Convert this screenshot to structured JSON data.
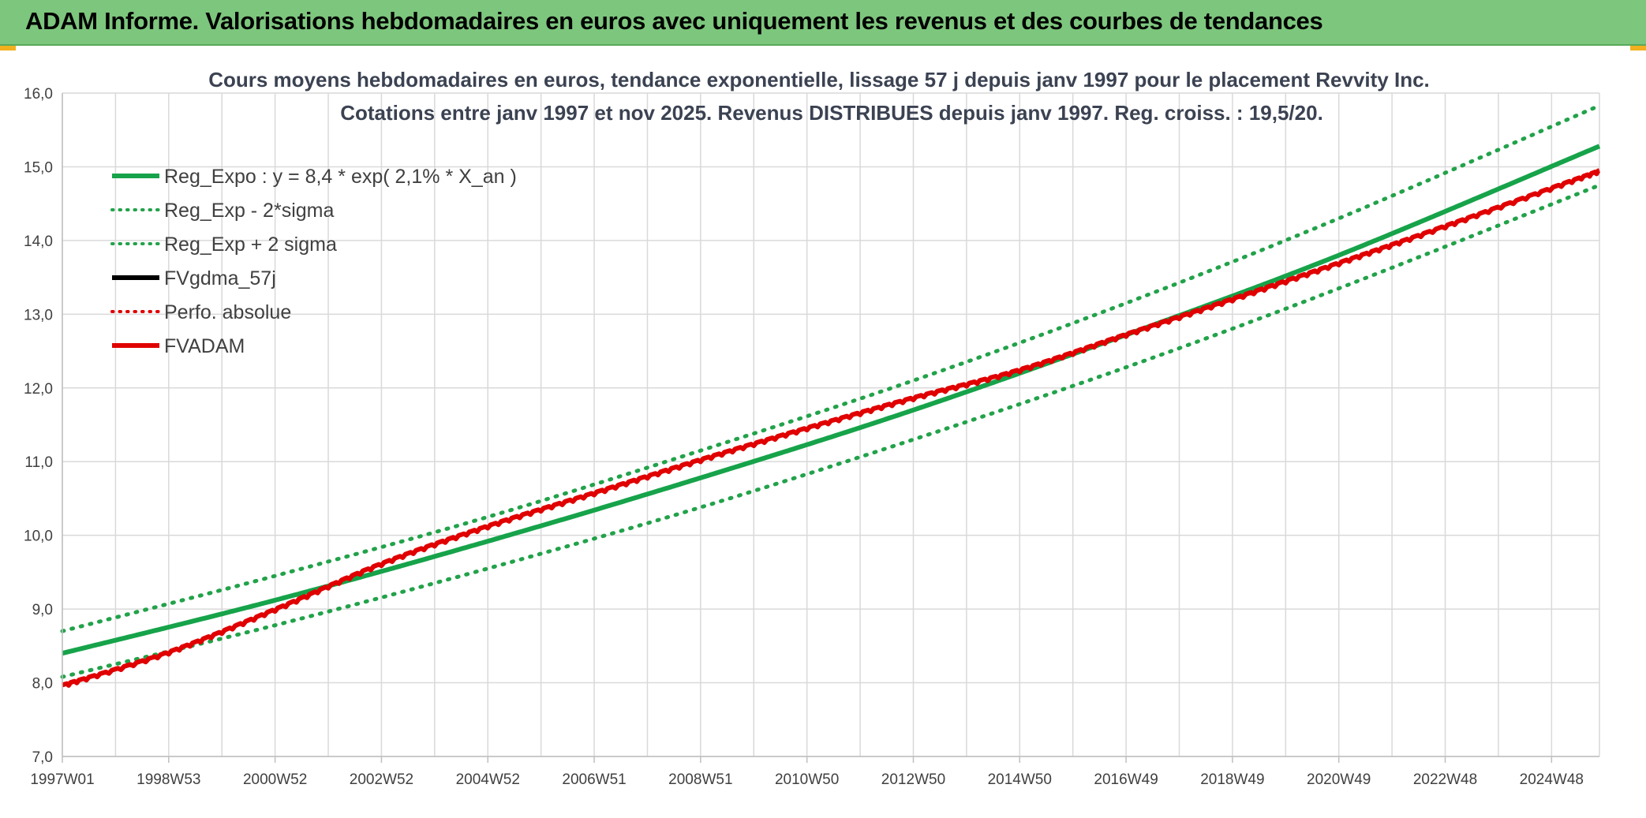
{
  "banner": {
    "title": "ADAM Informe. Valorisations hebdomadaires en euros avec uniquement les revenus et des courbes de tendances"
  },
  "colors": {
    "banner_bg": "#7dc67d",
    "regression": "#16a34a",
    "band": "#22a24a",
    "smoothed": "#000000",
    "perf": "#e00000",
    "fvadam": "#e00000",
    "grid": "#d9d9d9",
    "accent_corner": "#f2b01e"
  },
  "chart_data": {
    "type": "line",
    "title_line1": "Cours moyens hebdomadaires en euros, tendance exponentielle, lissage 57 j depuis janv 1997 pour le placement Revvity Inc.",
    "title_line2": "Cotations entre janv 1997 et nov 2025. Revenus DISTRIBUES depuis janv 1997. Reg. croiss. : 19,5/20.",
    "ylim": [
      7.0,
      16.0
    ],
    "y_ticks": [
      "7,0",
      "8,0",
      "9,0",
      "10,0",
      "11,0",
      "12,0",
      "13,0",
      "14,0",
      "15,0",
      "16,0"
    ],
    "x_range_years": [
      1997.0,
      2025.9
    ],
    "x_ticks": [
      {
        "label": "1997W01",
        "year": 1997.0
      },
      {
        "label": "1998W53",
        "year": 1999.0
      },
      {
        "label": "2000W52",
        "year": 2001.0
      },
      {
        "label": "2002W52",
        "year": 2003.0
      },
      {
        "label": "2004W52",
        "year": 2005.0
      },
      {
        "label": "2006W51",
        "year": 2007.0
      },
      {
        "label": "2008W51",
        "year": 2009.0
      },
      {
        "label": "2010W50",
        "year": 2011.0
      },
      {
        "label": "2012W50",
        "year": 2013.0
      },
      {
        "label": "2014W50",
        "year": 2015.0
      },
      {
        "label": "2016W49",
        "year": 2017.0
      },
      {
        "label": "2018W49",
        "year": 2019.0
      },
      {
        "label": "2020W49",
        "year": 2021.0
      },
      {
        "label": "2022W48",
        "year": 2023.0
      },
      {
        "label": "2024W48",
        "year": 2025.0
      }
    ],
    "grid": true,
    "legend_position": "top-left",
    "legend": [
      {
        "label": "Reg_Expo : y = 8,4 * exp( 2,1% *  X_an )",
        "style": "solid",
        "color": "#16a34a"
      },
      {
        "label": "Reg_Exp - 2*sigma",
        "style": "dotted",
        "color": "#22a24a"
      },
      {
        "label": "Reg_Exp + 2 sigma",
        "style": "dotted",
        "color": "#22a24a"
      },
      {
        "label": "FVgdma_57j",
        "style": "solid",
        "color": "#000000"
      },
      {
        "label": "Perfo. absolue",
        "style": "dotted",
        "color": "#e00000"
      },
      {
        "label": "FVADAM",
        "style": "solid",
        "color": "#e00000"
      }
    ],
    "series": [
      {
        "name": "Reg_Expo : y = 8,4 * exp( 2,1% *  X_an )",
        "x": [
          1997,
          2001,
          2005,
          2009,
          2013,
          2017,
          2021,
          2025.9
        ],
        "y": [
          8.4,
          9.12,
          9.92,
          10.78,
          11.7,
          12.72,
          13.8,
          15.28
        ]
      },
      {
        "name": "Reg_Exp - 2*sigma",
        "x": [
          1997,
          2001,
          2005,
          2009,
          2013,
          2017,
          2021,
          2025.9
        ],
        "y": [
          8.08,
          8.78,
          9.55,
          10.38,
          11.3,
          12.28,
          13.35,
          14.75
        ]
      },
      {
        "name": "Reg_Exp + 2 sigma",
        "x": [
          1997,
          2001,
          2005,
          2009,
          2013,
          2017,
          2021,
          2025.9
        ],
        "y": [
          8.7,
          9.45,
          10.25,
          11.15,
          12.1,
          13.15,
          14.3,
          15.83
        ]
      },
      {
        "name": "FVADAM",
        "x": [
          1997,
          1999,
          2001,
          2003,
          2005,
          2007,
          2009,
          2011,
          2013,
          2015,
          2017,
          2019,
          2021,
          2023,
          2025.9
        ],
        "y": [
          7.97,
          8.42,
          9.0,
          9.62,
          10.13,
          10.58,
          11.03,
          11.46,
          11.87,
          12.25,
          12.73,
          13.21,
          13.7,
          14.2,
          14.95
        ]
      }
    ]
  }
}
